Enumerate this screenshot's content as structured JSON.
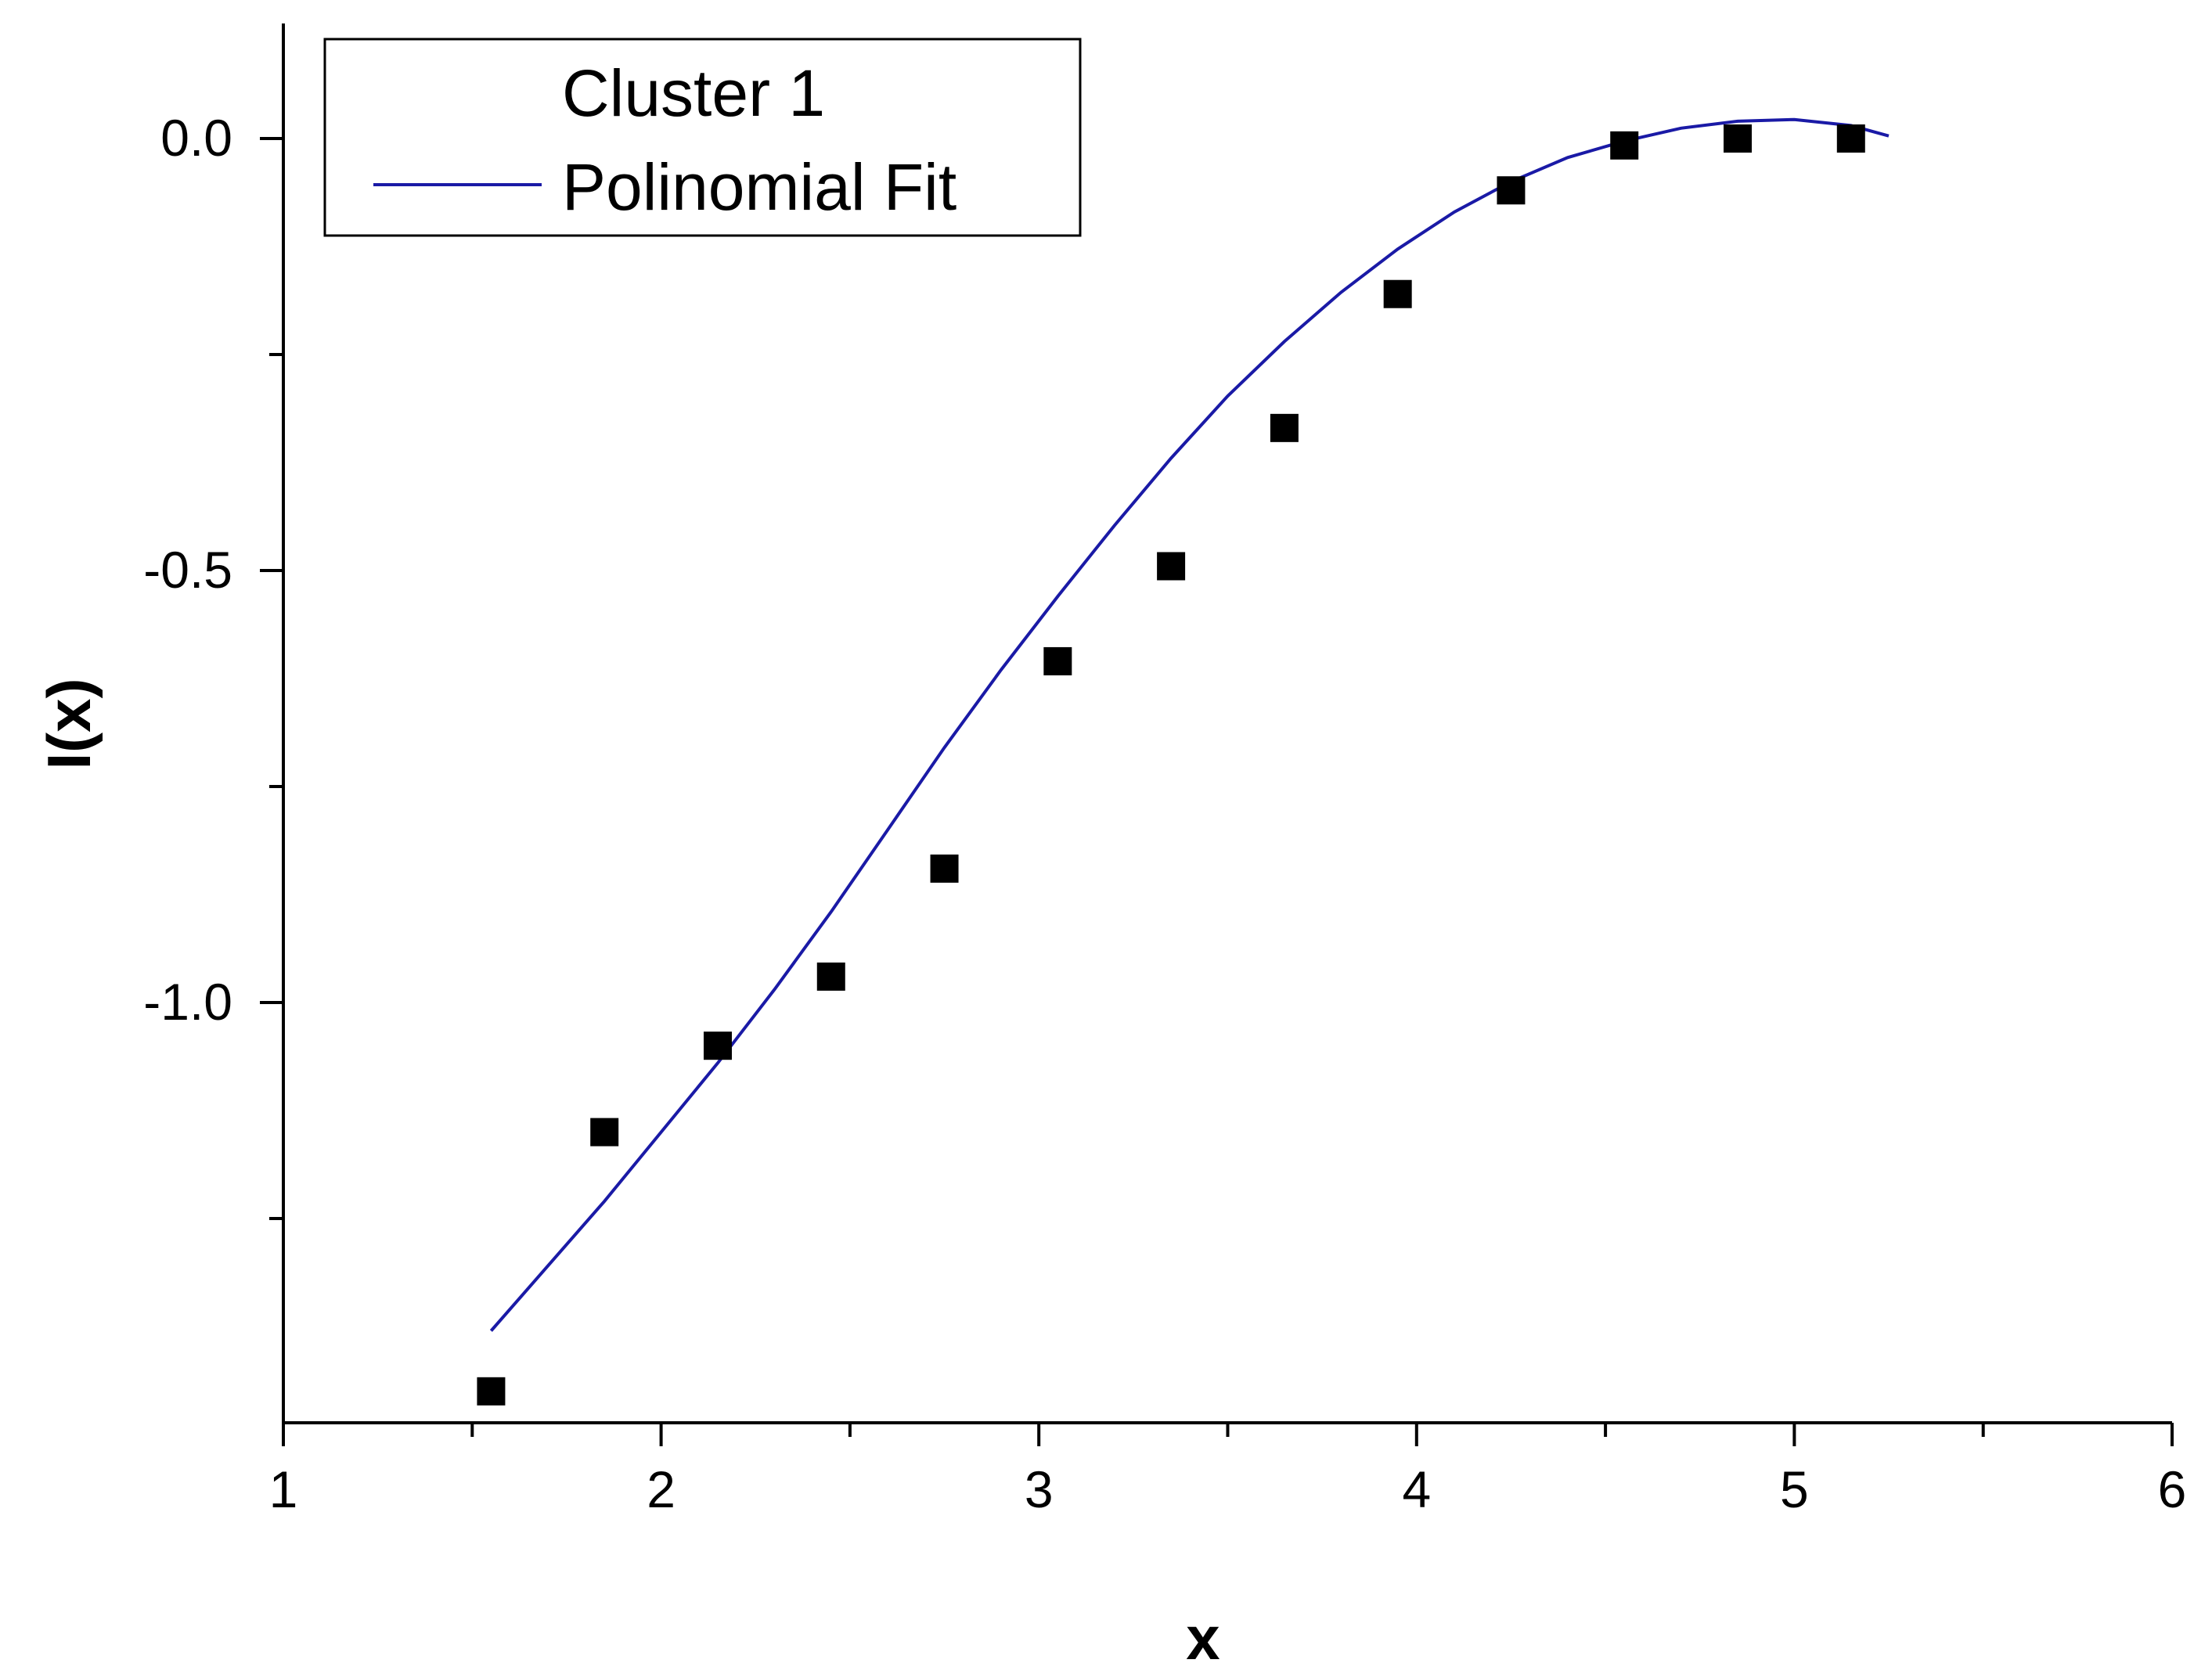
{
  "chart_data": {
    "type": "scatter",
    "title": "",
    "xlabel": "x",
    "ylabel": "I(x)",
    "xlim": [
      1,
      6
    ],
    "ylim": [
      -1.48,
      0.12
    ],
    "x_ticks": [
      1,
      2,
      3,
      4,
      5,
      6
    ],
    "x_tick_labels": [
      "1",
      "2",
      "3",
      "4",
      "5",
      "6"
    ],
    "y_ticks": [
      0.0,
      -0.5,
      -1.0
    ],
    "y_tick_labels": [
      "0.0",
      "-0.5",
      "-1.0"
    ],
    "grid": false,
    "legend_position": "top-left",
    "series": [
      {
        "name": "Cluster 1",
        "kind": "scatter",
        "marker": "square",
        "color": "#000000",
        "x": [
          1.55,
          1.85,
          2.15,
          2.45,
          2.75,
          3.05,
          3.35,
          3.65,
          3.95,
          4.25,
          4.55,
          4.85,
          5.15
        ],
        "y": [
          -1.45,
          -1.15,
          -1.05,
          -0.97,
          -0.845,
          -0.605,
          -0.495,
          -0.335,
          -0.18,
          -0.06,
          -0.008,
          0.0,
          0.0
        ]
      },
      {
        "name": "Polinomial Fit",
        "kind": "line",
        "color": "#1a1aa6",
        "x": [
          1.55,
          1.7,
          1.85,
          2.0,
          2.15,
          2.3,
          2.45,
          2.6,
          2.75,
          2.9,
          3.05,
          3.2,
          3.35,
          3.5,
          3.65,
          3.8,
          3.95,
          4.1,
          4.25,
          4.4,
          4.55,
          4.7,
          4.85,
          5.0,
          5.15,
          5.25
        ],
        "y": [
          -1.38,
          -1.305,
          -1.23,
          -1.15,
          -1.07,
          -0.985,
          -0.895,
          -0.8,
          -0.705,
          -0.615,
          -0.53,
          -0.448,
          -0.37,
          -0.298,
          -0.235,
          -0.178,
          -0.128,
          -0.085,
          -0.05,
          -0.022,
          -0.003,
          0.012,
          0.02,
          0.022,
          0.015,
          0.003
        ]
      }
    ]
  }
}
